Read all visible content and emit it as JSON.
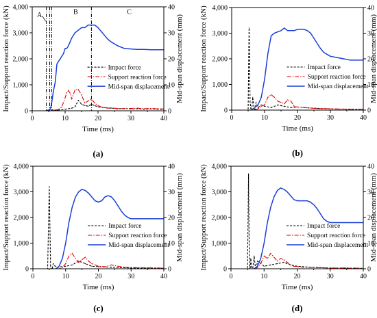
{
  "chart_data": [
    {
      "type": "line",
      "panel_label": "(a)",
      "xlabel": "Time (ms)",
      "ylabel_left": "Impact/Support reaction force (kN)",
      "ylabel_right": "Mid-span displacement (mm)",
      "xlim": [
        0,
        40
      ],
      "ylim_left": [
        0,
        4000
      ],
      "ylim_right": [
        0,
        40
      ],
      "x_ticks": [
        "0",
        "10",
        "20",
        "30",
        "40"
      ],
      "y_ticks_left": [
        "0",
        "1,000",
        "2,000",
        "3,000",
        "4,000"
      ],
      "y_ticks_right": [
        "0",
        "10",
        "20",
        "30",
        "40"
      ],
      "legend": {
        "position": "center-right",
        "entries": [
          "Impact force",
          "Support reaction force",
          "Mid-span displacement"
        ]
      },
      "annotations": [
        {
          "text": "A",
          "x": 2.2,
          "y": 3600
        },
        {
          "text": "B",
          "x": 13.2,
          "y": 3720
        },
        {
          "text": "C",
          "x": 29.5,
          "y": 3720
        }
      ],
      "vlines": [
        4.3,
        5.3,
        5.9,
        18.0
      ],
      "series": [
        {
          "name": "Impact force",
          "axis": "left",
          "x": [
            0,
            4,
            4.6,
            5,
            5.4,
            5.8,
            6.2,
            6.6,
            7,
            7.6,
            8.2,
            9,
            10,
            11,
            12,
            13,
            14,
            15,
            16,
            17,
            18,
            19,
            20,
            22,
            24,
            26,
            28,
            30,
            32,
            34,
            36,
            38,
            40
          ],
          "y": [
            0,
            0,
            20,
            5,
            60,
            10,
            40,
            15,
            30,
            25,
            35,
            40,
            60,
            80,
            100,
            150,
            400,
            250,
            200,
            180,
            250,
            200,
            150,
            120,
            100,
            80,
            90,
            70,
            80,
            60,
            70,
            60,
            50
          ]
        },
        {
          "name": "Support reaction force",
          "axis": "left",
          "x": [
            0,
            5,
            6,
            7,
            8,
            9,
            10,
            10.5,
            11,
            11.5,
            12,
            13,
            14,
            15,
            16,
            17,
            18,
            19,
            20,
            21,
            22,
            23,
            24,
            26,
            28,
            30,
            32,
            34,
            36,
            38,
            40
          ],
          "y": [
            0,
            0,
            0,
            30,
            50,
            150,
            500,
            700,
            780,
            680,
            450,
            800,
            820,
            600,
            300,
            380,
            450,
            300,
            200,
            150,
            120,
            100,
            110,
            90,
            80,
            90,
            100,
            80,
            90,
            80,
            70
          ]
        },
        {
          "name": "Mid-span displacement",
          "axis": "right",
          "x": [
            4.5,
            5.4,
            5.8,
            6.5,
            7,
            7.5,
            8,
            8.5,
            9,
            9.5,
            10,
            10.5,
            11,
            12,
            13,
            14,
            15,
            16,
            17,
            18,
            19,
            20,
            21,
            22,
            23,
            24,
            26,
            28,
            30,
            32,
            34,
            36,
            38,
            40
          ],
          "y": [
            0,
            0.5,
            2,
            8,
            11,
            18,
            19,
            20,
            21,
            22,
            24,
            24,
            25,
            28,
            30,
            31,
            32,
            32,
            33,
            33,
            33,
            32,
            30.5,
            29,
            27.5,
            26.5,
            25,
            24,
            23.8,
            23.6,
            23.6,
            23.5,
            23.5,
            23.5
          ]
        }
      ]
    },
    {
      "type": "line",
      "panel_label": "(b)",
      "xlabel": "Time (ms)",
      "ylabel_left": "Impact/Support reaction force (kN)",
      "ylabel_right": "Mid-span displacement (mm)",
      "xlim": [
        0,
        40
      ],
      "ylim_left": [
        0,
        4000
      ],
      "ylim_right": [
        0,
        40
      ],
      "x_ticks": [
        "0",
        "10",
        "20",
        "30",
        "40"
      ],
      "y_ticks_left": [
        "0",
        "1,000",
        "2,000",
        "3,000",
        "4,000"
      ],
      "y_ticks_right": [
        "0",
        "10",
        "20",
        "30",
        "40"
      ],
      "legend": {
        "position": "center-right",
        "entries": [
          "Impact force",
          "Support reaction force",
          "Mid-span displacement"
        ]
      },
      "series": [
        {
          "name": "Impact force",
          "axis": "left",
          "x": [
            0,
            5,
            5.3,
            5.6,
            6,
            6.4,
            7,
            7.4,
            8,
            9,
            10,
            12,
            14,
            16,
            18,
            20,
            22,
            24,
            26,
            28,
            30,
            32,
            34,
            36,
            38,
            40
          ],
          "y": [
            0,
            0,
            3200,
            300,
            -150,
            500,
            -100,
            300,
            100,
            200,
            150,
            100,
            200,
            150,
            100,
            120,
            100,
            80,
            70,
            60,
            50,
            40,
            40,
            30,
            30,
            30
          ]
        },
        {
          "name": "Support reaction force",
          "axis": "left",
          "x": [
            0,
            7,
            8,
            9,
            10,
            11,
            12,
            13,
            14,
            15,
            16,
            17,
            18,
            19,
            20,
            22,
            24,
            26,
            28,
            30,
            34,
            40
          ],
          "y": [
            0,
            0,
            50,
            150,
            200,
            500,
            600,
            500,
            350,
            300,
            250,
            400,
            350,
            150,
            120,
            100,
            80,
            60,
            60,
            50,
            40,
            30
          ]
        },
        {
          "name": "Mid-span displacement",
          "axis": "right",
          "x": [
            6,
            7,
            8,
            9,
            10,
            11,
            12,
            13,
            14,
            15,
            16,
            17,
            18,
            19,
            20,
            21,
            22,
            23,
            24,
            25,
            26,
            27,
            28,
            30,
            32,
            34,
            36,
            38,
            40
          ],
          "y": [
            0,
            1,
            2,
            5,
            12,
            22,
            29,
            30,
            30.5,
            31,
            32,
            31,
            31,
            31,
            31.5,
            31.5,
            31.5,
            31,
            30,
            28,
            26,
            24,
            22.5,
            21,
            20.5,
            20,
            19.5,
            19.5,
            19.5
          ]
        }
      ]
    },
    {
      "type": "line",
      "panel_label": "(c)",
      "xlabel": "Time (ms)",
      "ylabel_left": "Impact/Support reaction force (kN)",
      "ylabel_right": "Mid-span displacement (mm)",
      "xlim": [
        0,
        40
      ],
      "ylim_left": [
        0,
        4000
      ],
      "ylim_right": [
        0,
        40
      ],
      "x_ticks": [
        "0",
        "10",
        "20",
        "30",
        "40"
      ],
      "y_ticks_left": [
        "0",
        "1,000",
        "2,000",
        "3,000",
        "4,000"
      ],
      "y_ticks_right": [
        "0",
        "10",
        "20",
        "30",
        "40"
      ],
      "legend": {
        "position": "center-right",
        "entries": [
          "Impact force",
          "Support reaction force",
          "Mid-span displacement"
        ]
      },
      "series": [
        {
          "name": "Impact force",
          "axis": "left",
          "x": [
            0,
            4.5,
            5,
            5.4,
            5.8,
            6.2,
            6.8,
            7.5,
            8.5,
            10,
            12,
            14,
            16,
            18,
            20,
            22,
            24,
            26,
            28,
            30,
            34,
            40
          ],
          "y": [
            0,
            0,
            3200,
            100,
            -100,
            200,
            100,
            50,
            80,
            100,
            150,
            300,
            200,
            100,
            80,
            70,
            60,
            50,
            40,
            30,
            30,
            20
          ]
        },
        {
          "name": "Support reaction force",
          "axis": "left",
          "x": [
            0,
            8,
            9,
            10,
            11,
            12,
            13,
            14,
            15,
            16,
            17,
            18,
            19,
            20,
            22,
            24,
            26,
            28,
            30,
            34,
            40
          ],
          "y": [
            0,
            0,
            50,
            200,
            500,
            600,
            400,
            250,
            350,
            450,
            300,
            200,
            150,
            100,
            80,
            150,
            100,
            60,
            50,
            40,
            30
          ]
        },
        {
          "name": "Mid-span displacement",
          "axis": "right",
          "x": [
            7,
            8,
            9,
            10,
            11,
            12,
            13,
            14,
            15,
            16,
            17,
            18,
            19,
            20,
            21,
            22,
            23,
            24,
            25,
            26,
            27,
            28,
            29,
            30,
            32,
            34,
            36,
            38,
            40
          ],
          "y": [
            0,
            1,
            4,
            10,
            18,
            24,
            28,
            30,
            31,
            30.5,
            29.5,
            28,
            26.5,
            26,
            26.5,
            28,
            28.5,
            28,
            26.5,
            24.5,
            22.5,
            21,
            20,
            19.5,
            19.5,
            19.5,
            19.5,
            19.5,
            19.5
          ]
        }
      ]
    },
    {
      "type": "line",
      "panel_label": "(d)",
      "xlabel": "Time (ms)",
      "ylabel_left": "Impact/Support reaction force (kN)",
      "ylabel_right": "Mid-span displacement (mm)",
      "xlim": [
        0,
        40
      ],
      "ylim_left": [
        0,
        4000
      ],
      "ylim_right": [
        0,
        40
      ],
      "x_ticks": [
        "0",
        "10",
        "20",
        "30",
        "40"
      ],
      "y_ticks_left": [
        "0",
        "1,000",
        "2,000",
        "3,000",
        "4,000"
      ],
      "y_ticks_right": [
        "0",
        "10",
        "20",
        "30",
        "40"
      ],
      "legend": {
        "position": "center-right",
        "entries": [
          "Impact force",
          "Support reaction force",
          "Mid-span displacement"
        ]
      },
      "series": [
        {
          "name": "Impact force",
          "axis": "left",
          "x": [
            0,
            5,
            5.3,
            5.6,
            6,
            6.4,
            7,
            7.5,
            8,
            9,
            10,
            12,
            14,
            16,
            18,
            20,
            22,
            24,
            26,
            28,
            30,
            34,
            40
          ],
          "y": [
            0,
            0,
            3700,
            -500,
            400,
            -200,
            500,
            -100,
            300,
            200,
            100,
            150,
            200,
            250,
            150,
            100,
            80,
            60,
            50,
            40,
            30,
            30,
            20
          ]
        },
        {
          "name": "Support reaction force",
          "axis": "left",
          "x": [
            0,
            7,
            8,
            9,
            10,
            11,
            12,
            13,
            14,
            15,
            16,
            17,
            18,
            19,
            20,
            22,
            24,
            26,
            28,
            30,
            34,
            40
          ],
          "y": [
            0,
            0,
            50,
            200,
            500,
            400,
            600,
            450,
            300,
            400,
            350,
            250,
            150,
            100,
            80,
            60,
            50,
            40,
            40,
            30,
            30,
            20
          ]
        },
        {
          "name": "Mid-span displacement",
          "axis": "right",
          "x": [
            7,
            8,
            9,
            10,
            11,
            12,
            13,
            14,
            15,
            16,
            17,
            18,
            19,
            20,
            21,
            22,
            23,
            24,
            25,
            26,
            27,
            28,
            29,
            30,
            32,
            34,
            36,
            38,
            40
          ],
          "y": [
            0,
            1,
            4,
            10,
            18,
            24,
            28,
            30.5,
            31.5,
            31,
            30,
            28.5,
            27,
            26.5,
            26.5,
            26.5,
            26.5,
            26,
            25,
            23.5,
            21.5,
            19.5,
            18.5,
            18,
            18,
            18,
            18,
            18,
            18
          ]
        }
      ]
    }
  ]
}
